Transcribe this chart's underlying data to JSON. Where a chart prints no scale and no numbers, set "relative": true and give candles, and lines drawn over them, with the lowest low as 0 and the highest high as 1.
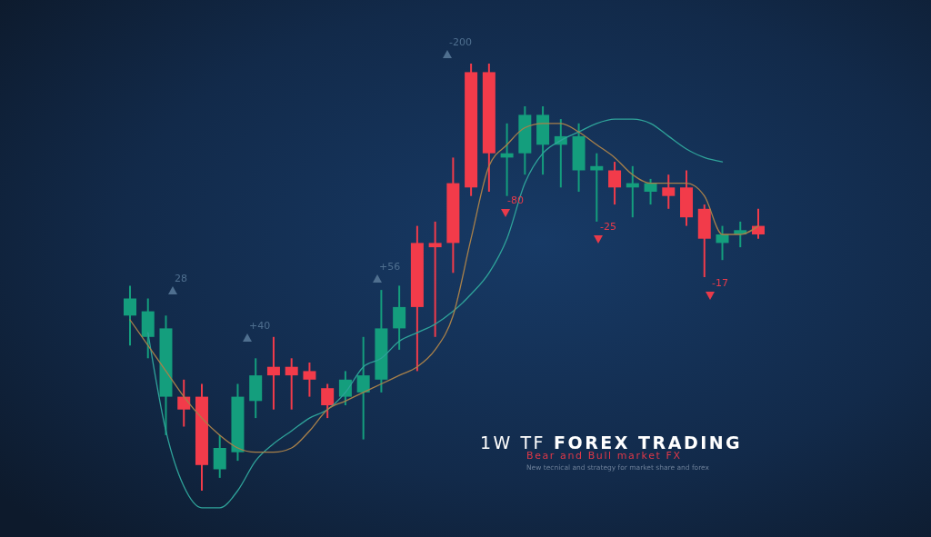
{
  "chart_data": {
    "type": "candlestick",
    "title": "1W TF FOREX TRADING",
    "subtitle": "Bear and Bull market FX",
    "relative": true,
    "categories": [
      null,
      null,
      null,
      null,
      null,
      null,
      null,
      null,
      null,
      null,
      null,
      null,
      null,
      null,
      null,
      null,
      null,
      null,
      null,
      null,
      null,
      null,
      null,
      null,
      null,
      null,
      null,
      null,
      null,
      null,
      null,
      null,
      null,
      null,
      null,
      null
    ],
    "ohlc": [
      [
        0.41,
        0.48,
        0.34,
        0.45
      ],
      [
        0.36,
        0.45,
        0.31,
        0.42
      ],
      [
        0.22,
        0.41,
        0.13,
        0.38
      ],
      [
        0.22,
        0.26,
        0.15,
        0.19
      ],
      [
        0.22,
        0.25,
        0,
        0.06
      ],
      [
        0.05,
        0.13,
        0.03,
        0.1
      ],
      [
        0.09,
        0.25,
        0.07,
        0.22
      ],
      [
        0.21,
        0.31,
        0.17,
        0.27
      ],
      [
        0.29,
        0.36,
        0.19,
        0.27
      ],
      [
        0.29,
        0.31,
        0.19,
        0.27
      ],
      [
        0.28,
        0.3,
        0.22,
        0.26
      ],
      [
        0.24,
        0.25,
        0.17,
        0.2
      ],
      [
        0.22,
        0.28,
        0.2,
        0.26
      ],
      [
        0.23,
        0.36,
        0.12,
        0.27
      ],
      [
        0.26,
        0.47,
        0.23,
        0.38
      ],
      [
        0.38,
        0.48,
        0.33,
        0.43
      ],
      [
        0.58,
        0.62,
        0.28,
        0.43
      ],
      [
        0.58,
        0.63,
        0.36,
        0.57
      ],
      [
        0.72,
        0.78,
        0.51,
        0.58
      ],
      [
        0.98,
        1,
        0.69,
        0.71
      ],
      [
        0.98,
        1,
        0.7,
        0.79
      ],
      [
        0.78,
        0.86,
        0.69,
        0.79
      ],
      [
        0.79,
        0.9,
        0.74,
        0.88
      ],
      [
        0.81,
        0.9,
        0.74,
        0.88
      ],
      [
        0.81,
        0.87,
        0.71,
        0.83
      ],
      [
        0.75,
        0.86,
        0.7,
        0.83
      ],
      [
        0.75,
        0.79,
        0.63,
        0.76
      ],
      [
        0.75,
        0.77,
        0.67,
        0.71
      ],
      [
        0.71,
        0.76,
        0.64,
        0.72
      ],
      [
        0.7,
        0.73,
        0.67,
        0.72
      ],
      [
        0.71,
        0.74,
        0.66,
        0.69
      ],
      [
        0.71,
        0.75,
        0.62,
        0.64
      ],
      [
        0.66,
        0.67,
        0.5,
        0.59
      ],
      [
        0.58,
        0.62,
        0.54,
        0.6
      ],
      [
        0.6,
        0.63,
        0.57,
        0.61
      ],
      [
        0.62,
        0.66,
        0.59,
        0.6
      ]
    ],
    "colors": [
      "#149e7d",
      "#149e7d",
      "#149e7d",
      "#f23b4a",
      "#f23b4a",
      "#149e7d",
      "#149e7d",
      "#149e7d",
      "#f23b4a",
      "#f23b4a",
      "#f23b4a",
      "#f23b4a",
      "#149e7d",
      "#149e7d",
      "#149e7d",
      "#149e7d",
      "#f23b4a",
      "#f23b4a",
      "#f23b4a",
      "#f23b4a",
      "#f23b4a",
      "#149e7d",
      "#149e7d",
      "#149e7d",
      "#149e7d",
      "#149e7d",
      "#149e7d",
      "#f23b4a",
      "#149e7d",
      "#149e7d",
      "#f23b4a",
      "#f23b4a",
      "#f23b4a",
      "#149e7d",
      "#149e7d",
      "#f23b4a"
    ],
    "series": [
      {
        "type": "line",
        "color": "#2fa39a",
        "values": [
          null,
          0.37,
          0.14,
          0.01,
          -0.04,
          -0.04,
          0,
          0.07,
          0.11,
          0.14,
          0.17,
          0.19,
          0.23,
          0.29,
          0.31,
          0.35,
          0.37,
          0.39,
          0.42,
          0.46,
          0.51,
          0.59,
          0.72,
          0.79,
          0.82,
          0.84,
          0.86,
          0.87,
          0.87,
          0.86,
          0.83,
          0.8,
          0.78,
          0.77,
          null,
          null
        ]
      },
      {
        "type": "line",
        "color": "#a8804a",
        "values": [
          0.4,
          0.34,
          0.28,
          0.22,
          0.17,
          0.13,
          0.1,
          0.09,
          0.09,
          0.1,
          0.14,
          0.19,
          0.21,
          0.23,
          0.25,
          0.27,
          0.29,
          0.33,
          0.41,
          0.59,
          0.76,
          0.81,
          0.85,
          0.86,
          0.86,
          0.84,
          0.81,
          0.78,
          0.74,
          0.72,
          0.72,
          0.72,
          0.69,
          0.6,
          0.6,
          0.62
        ]
      }
    ],
    "annotations": [
      "28",
      "+40",
      "+56",
      "-200",
      "-80",
      "-25",
      "-17",
      "New tecnical and strategy for market share and forex"
    ]
  }
}
